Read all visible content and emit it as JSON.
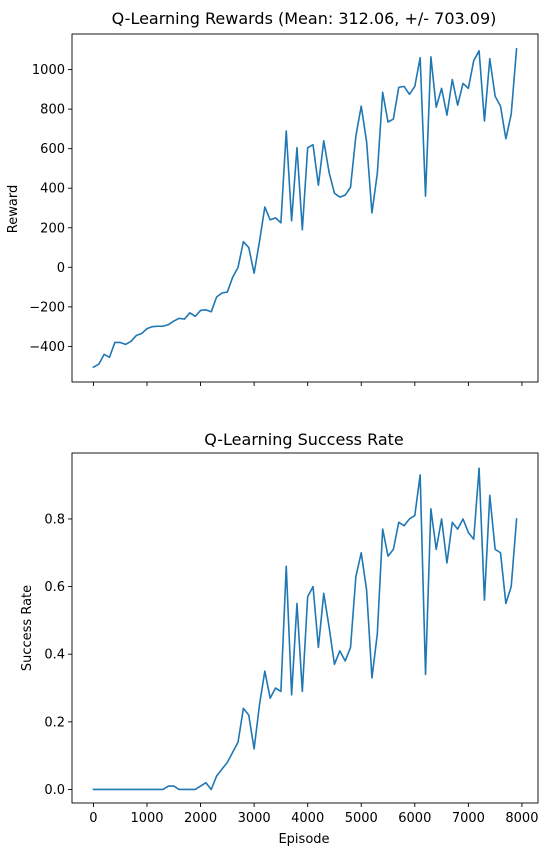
{
  "chart_data": [
    {
      "type": "line",
      "title": "Q-Learning Rewards (Mean: 312.06, +/- 703.09)",
      "xlabel": "",
      "ylabel": "Reward",
      "xlim": [
        -400,
        8300
      ],
      "ylim": [
        -580,
        1180
      ],
      "xticks": [
        0,
        1000,
        2000,
        3000,
        4000,
        5000,
        6000,
        7000,
        8000
      ],
      "yticks": [
        -400,
        -200,
        0,
        200,
        400,
        600,
        800,
        1000
      ],
      "ytick_labels": [
        "−400",
        "−200",
        "0",
        "200",
        "400",
        "600",
        "800",
        "1000"
      ],
      "show_xtick_labels": false,
      "grid": false,
      "line_color": "#1f77b4",
      "series": [
        {
          "x": [
            0,
            100,
            200,
            300,
            400,
            500,
            600,
            700,
            800,
            900,
            1000,
            1100,
            1200,
            1300,
            1400,
            1500,
            1600,
            1700,
            1800,
            1900,
            2000,
            2100,
            2200,
            2300,
            2400,
            2500,
            2600,
            2700,
            2800,
            2900,
            3000,
            3100,
            3200,
            3300,
            3400,
            3500,
            3600,
            3700,
            3800,
            3900,
            4000,
            4100,
            4200,
            4300,
            4400,
            4500,
            4600,
            4700,
            4800,
            4900,
            5000,
            5100,
            5200,
            5300,
            5400,
            5500,
            5600,
            5700,
            5800,
            5900,
            6000,
            6100,
            6200,
            6300,
            6400,
            6500,
            6600,
            6700,
            6800,
            6900,
            7000,
            7100,
            7200,
            7300,
            7400,
            7500,
            7600,
            7700,
            7800,
            7900
          ],
          "y": [
            -505,
            -490,
            -440,
            -455,
            -380,
            -380,
            -390,
            -375,
            -345,
            -335,
            -310,
            -300,
            -298,
            -298,
            -290,
            -272,
            -258,
            -262,
            -230,
            -248,
            -218,
            -215,
            -225,
            -150,
            -130,
            -125,
            -50,
            0,
            130,
            100,
            -30,
            130,
            305,
            240,
            250,
            225,
            690,
            235,
            605,
            190,
            605,
            620,
            415,
            640,
            480,
            375,
            355,
            365,
            405,
            665,
            815,
            635,
            275,
            475,
            885,
            735,
            750,
            910,
            915,
            875,
            915,
            1060,
            360,
            1065,
            810,
            905,
            770,
            950,
            820,
            930,
            905,
            1045,
            1095,
            740,
            1055,
            865,
            815,
            650,
            775,
            1105
          ]
        }
      ]
    },
    {
      "type": "line",
      "title": "Q-Learning Success Rate",
      "xlabel": "Episode",
      "ylabel": "Success Rate",
      "xlim": [
        -400,
        8300
      ],
      "ylim": [
        -0.04,
        0.995
      ],
      "xticks": [
        0,
        1000,
        2000,
        3000,
        4000,
        5000,
        6000,
        7000,
        8000
      ],
      "yticks": [
        0.0,
        0.2,
        0.4,
        0.6,
        0.8
      ],
      "ytick_labels": [
        "0.0",
        "0.2",
        "0.4",
        "0.6",
        "0.8"
      ],
      "show_xtick_labels": true,
      "grid": false,
      "line_color": "#1f77b4",
      "series": [
        {
          "x": [
            0,
            100,
            200,
            300,
            400,
            500,
            600,
            700,
            800,
            900,
            1000,
            1100,
            1200,
            1300,
            1400,
            1500,
            1600,
            1700,
            1800,
            1900,
            2000,
            2100,
            2200,
            2300,
            2400,
            2500,
            2600,
            2700,
            2800,
            2900,
            3000,
            3100,
            3200,
            3300,
            3400,
            3500,
            3600,
            3700,
            3800,
            3900,
            4000,
            4100,
            4200,
            4300,
            4400,
            4500,
            4600,
            4700,
            4800,
            4900,
            5000,
            5100,
            5200,
            5300,
            5400,
            5500,
            5600,
            5700,
            5800,
            5900,
            6000,
            6100,
            6200,
            6300,
            6400,
            6500,
            6600,
            6700,
            6800,
            6900,
            7000,
            7100,
            7200,
            7300,
            7400,
            7500,
            7600,
            7700,
            7800,
            7900
          ],
          "y": [
            0,
            0,
            0,
            0,
            0,
            0,
            0,
            0,
            0,
            0,
            0,
            0,
            0,
            0,
            0.01,
            0.01,
            0,
            0,
            0,
            0,
            0.01,
            0.02,
            0,
            0.04,
            0.06,
            0.08,
            0.11,
            0.14,
            0.24,
            0.22,
            0.12,
            0.25,
            0.35,
            0.27,
            0.3,
            0.29,
            0.66,
            0.28,
            0.55,
            0.29,
            0.57,
            0.6,
            0.42,
            0.58,
            0.48,
            0.37,
            0.41,
            0.38,
            0.42,
            0.63,
            0.7,
            0.59,
            0.33,
            0.46,
            0.77,
            0.69,
            0.71,
            0.79,
            0.78,
            0.8,
            0.81,
            0.93,
            0.34,
            0.83,
            0.71,
            0.8,
            0.67,
            0.79,
            0.77,
            0.8,
            0.76,
            0.74,
            0.95,
            0.56,
            0.87,
            0.71,
            0.7,
            0.55,
            0.6,
            0.8
          ]
        }
      ]
    }
  ]
}
